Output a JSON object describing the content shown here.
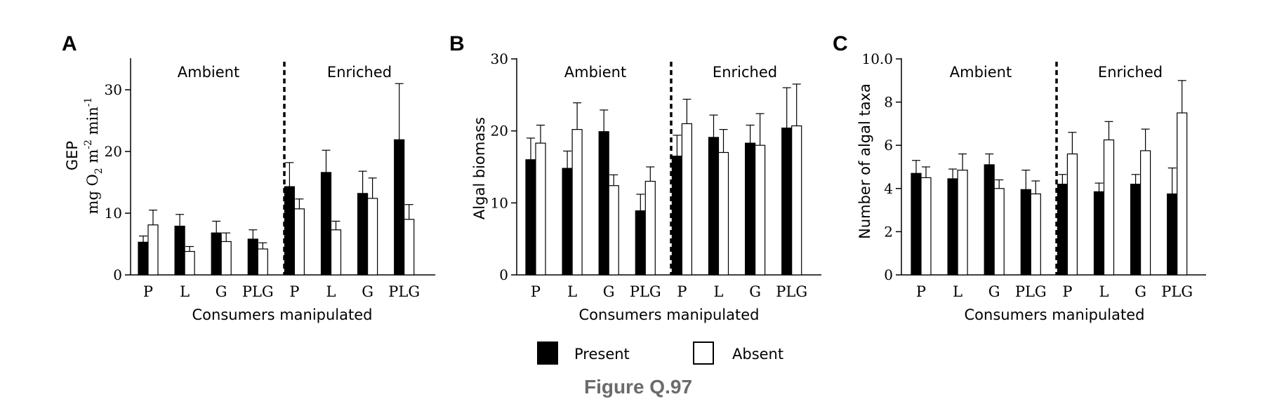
{
  "figure_caption": "Figure Q.97",
  "legend": {
    "present_label": "Present",
    "absent_label": "Absent"
  },
  "colors": {
    "present": "#000000",
    "absent": "#ffffff",
    "caption": "#6b6b6b"
  },
  "chart_data": [
    {
      "type": "bar",
      "panel": "A",
      "groups": [
        "Ambient",
        "Enriched"
      ],
      "categories": [
        "P",
        "L",
        "G",
        "PLG",
        "P",
        "L",
        "G",
        "PLG"
      ],
      "xlabel": "Consumers manipulated",
      "ylabel_line1": "GEP",
      "ylabel_line2_parts": {
        "a": "mg O",
        "b": "2",
        "c": " m",
        "d": "-2",
        "e": " min",
        "f": "-1"
      },
      "ylim": [
        0,
        35
      ],
      "yticks": [
        0,
        10,
        20,
        30
      ],
      "ytick_labels": [
        "0",
        "10",
        "20",
        "30"
      ],
      "series": [
        {
          "name": "Present",
          "values": [
            5.3,
            7.9,
            6.8,
            5.8,
            14.3,
            16.6,
            13.2,
            21.9
          ],
          "err": [
            1.0,
            1.9,
            1.9,
            1.5,
            3.9,
            3.6,
            3.6,
            9.1
          ]
        },
        {
          "name": "Absent",
          "values": [
            8.1,
            3.8,
            5.4,
            4.2,
            10.7,
            7.3,
            12.4,
            9.0
          ],
          "err": [
            2.4,
            0.8,
            1.4,
            1.0,
            1.6,
            1.4,
            3.3,
            2.4
          ]
        }
      ]
    },
    {
      "type": "bar",
      "panel": "B",
      "groups": [
        "Ambient",
        "Enriched"
      ],
      "categories": [
        "P",
        "L",
        "G",
        "PLG",
        "P",
        "L",
        "G",
        "PLG"
      ],
      "xlabel": "Consumers manipulated",
      "ylabel": "Algal biomass",
      "ylim": [
        0,
        30
      ],
      "yticks": [
        0,
        10,
        20,
        30
      ],
      "ytick_labels": [
        "0",
        "10",
        "20",
        "30"
      ],
      "series": [
        {
          "name": "Present",
          "values": [
            16.0,
            14.8,
            19.9,
            8.9,
            16.5,
            19.1,
            18.3,
            20.4
          ],
          "err": [
            3.0,
            2.4,
            3.0,
            2.3,
            2.9,
            3.1,
            2.5,
            5.6
          ]
        },
        {
          "name": "Absent",
          "values": [
            18.3,
            20.2,
            12.4,
            13.0,
            21.0,
            17.0,
            18.0,
            20.7
          ],
          "err": [
            2.5,
            3.7,
            1.5,
            2.0,
            3.4,
            3.2,
            4.4,
            5.8
          ]
        }
      ]
    },
    {
      "type": "bar",
      "panel": "C",
      "groups": [
        "Ambient",
        "Enriched"
      ],
      "categories": [
        "P",
        "L",
        "G",
        "PLG",
        "P",
        "L",
        "G",
        "PLG"
      ],
      "xlabel": "Consumers manipulated",
      "ylabel": "Number of algal taxa",
      "ylim": [
        0,
        10
      ],
      "yticks": [
        0,
        2,
        4,
        6,
        8,
        10
      ],
      "ytick_labels": [
        "0",
        "2",
        "4",
        "6",
        "8",
        "10.0"
      ],
      "series": [
        {
          "name": "Present",
          "values": [
            4.7,
            4.45,
            5.1,
            3.95,
            4.2,
            3.85,
            4.2,
            3.75
          ],
          "err": [
            0.6,
            0.45,
            0.5,
            0.9,
            0.45,
            0.4,
            0.45,
            1.2
          ]
        },
        {
          "name": "Absent",
          "values": [
            4.5,
            4.85,
            4.0,
            3.75,
            5.6,
            6.25,
            5.75,
            7.5
          ],
          "err": [
            0.5,
            0.75,
            0.4,
            0.6,
            1.0,
            0.85,
            1.0,
            1.5
          ]
        }
      ]
    }
  ]
}
